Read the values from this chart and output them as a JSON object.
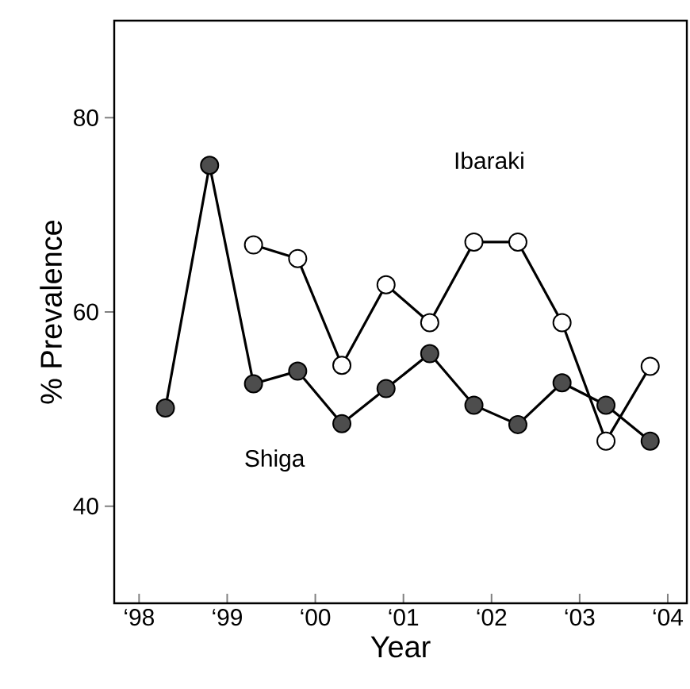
{
  "chart_data": {
    "type": "line",
    "xlabel": "Year",
    "ylabel": "% Prevalence",
    "xlim": [
      "1997-09-20",
      "2004-03-20"
    ],
    "ylim": [
      30,
      90
    ],
    "xticks": [
      {
        "value": "1998",
        "label": "‘98"
      },
      {
        "value": "1999",
        "label": "‘99"
      },
      {
        "value": "2000",
        "label": "‘00"
      },
      {
        "value": "2001",
        "label": "‘01"
      },
      {
        "value": "2002",
        "label": "‘02"
      },
      {
        "value": "2003",
        "label": "‘03"
      },
      {
        "value": "2004",
        "label": "‘04"
      }
    ],
    "yticks": [
      40,
      60,
      80
    ],
    "marker": "circle",
    "line_style": "solid",
    "grid": false,
    "legend": false,
    "series": [
      {
        "name": "Shiga",
        "color": "#4d4d4d",
        "x": [
          "1998-04-20",
          "1998-10-20",
          "1999-04-20",
          "1999-10-20",
          "2000-04-20",
          "2000-10-20",
          "2001-04-20",
          "2001-10-20",
          "2002-04-20",
          "2002-10-20",
          "2003-04-20",
          "2003-10-20"
        ],
        "values": [
          50.1,
          75.1,
          52.6,
          53.9,
          48.5,
          52.1,
          55.7,
          50.4,
          48.4,
          52.7,
          50.4,
          46.7
        ]
      },
      {
        "name": "Ibaraki",
        "color": "#ffffff",
        "x": [
          "1999-04-20",
          "1999-10-20",
          "2000-04-20",
          "2000-10-20",
          "2001-04-20",
          "2001-10-20",
          "2002-04-20",
          "2002-10-20",
          "2003-04-20",
          "2003-10-20"
        ],
        "values": [
          66.9,
          65.5,
          54.5,
          62.8,
          58.9,
          67.2,
          67.2,
          58.9,
          46.7,
          54.4
        ]
      }
    ]
  }
}
